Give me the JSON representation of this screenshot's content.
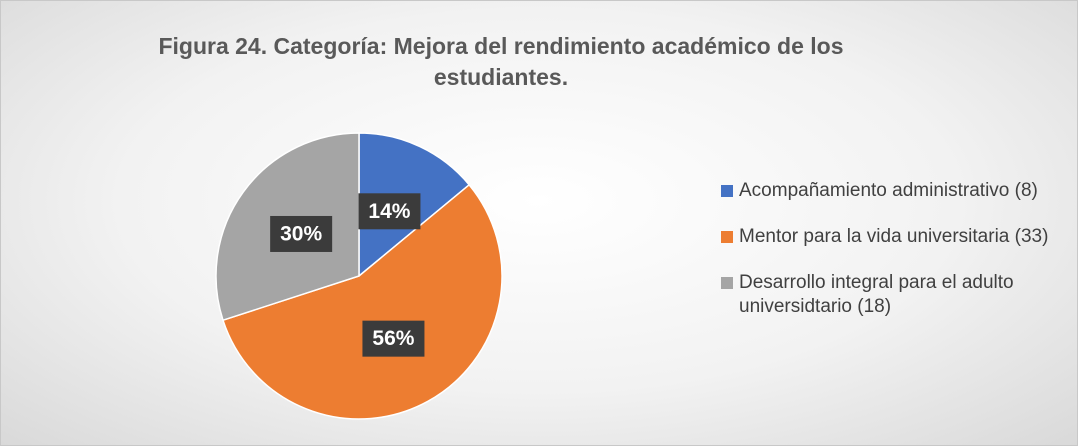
{
  "chart_data": {
    "type": "pie",
    "title": "Figura 24. Categoría: Mejora del rendimiento académico de los estudiantes.",
    "categories": [
      "Acompañamiento administrativo (8)",
      "Mentor para la vida universitaria (33)",
      "Desarrollo integral para el adulto universidtario (18)"
    ],
    "values": [
      14,
      56,
      30
    ],
    "value_labels": [
      "14%",
      "56%",
      "30%"
    ],
    "colors": [
      "#4472c4",
      "#ed7d31",
      "#a5a5a5"
    ],
    "legend": "right"
  }
}
